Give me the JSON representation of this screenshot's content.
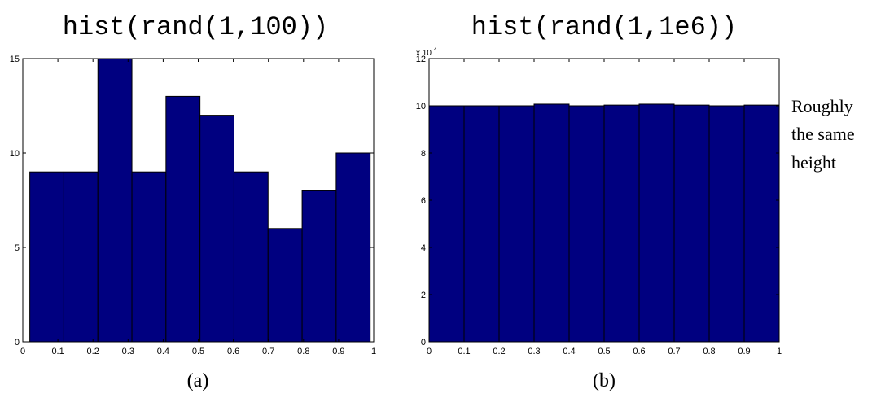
{
  "chart_data": [
    {
      "type": "bar",
      "title": "hist(rand(1,100))",
      "caption": "(a)",
      "bin_edges": [
        0.02,
        0.117,
        0.214,
        0.311,
        0.408,
        0.505,
        0.602,
        0.699,
        0.796,
        0.893,
        0.99
      ],
      "values": [
        9,
        9,
        15,
        9,
        13,
        12,
        9,
        6,
        8,
        10
      ],
      "xlim": [
        0,
        1
      ],
      "ylim": [
        0,
        15
      ],
      "xticks": [
        "0",
        "0.1",
        "0.2",
        "0.3",
        "0.4",
        "0.5",
        "0.6",
        "0.7",
        "0.8",
        "0.9",
        "1"
      ],
      "yticks": [
        "0",
        "5",
        "10",
        "15"
      ],
      "ytick_values": [
        0,
        5,
        10,
        15
      ],
      "bar_color": "#000080",
      "grid": false
    },
    {
      "type": "bar",
      "title": "hist(rand(1,1e6))",
      "caption": "(b)",
      "bin_edges": [
        0,
        0.1,
        0.2,
        0.3,
        0.4,
        0.5,
        0.6,
        0.7,
        0.8,
        0.9,
        1.0
      ],
      "values": [
        100000,
        100000,
        100000,
        100700,
        100000,
        100300,
        100700,
        100300,
        100000,
        100300
      ],
      "xlim": [
        0,
        1
      ],
      "ylim": [
        0,
        120000
      ],
      "xticks": [
        "0",
        "0.1",
        "0.2",
        "0.3",
        "0.4",
        "0.5",
        "0.6",
        "0.7",
        "0.8",
        "0.9",
        "1"
      ],
      "yticks": [
        "0",
        "2",
        "4",
        "6",
        "8",
        "10",
        "12"
      ],
      "ytick_values": [
        0,
        20000,
        40000,
        60000,
        80000,
        100000,
        120000
      ],
      "y_exponent_base": "x 10",
      "y_exponent_power": "4",
      "bar_color": "#000080",
      "grid": false,
      "annotation": [
        "Roughly",
        "the same",
        "height"
      ]
    }
  ]
}
